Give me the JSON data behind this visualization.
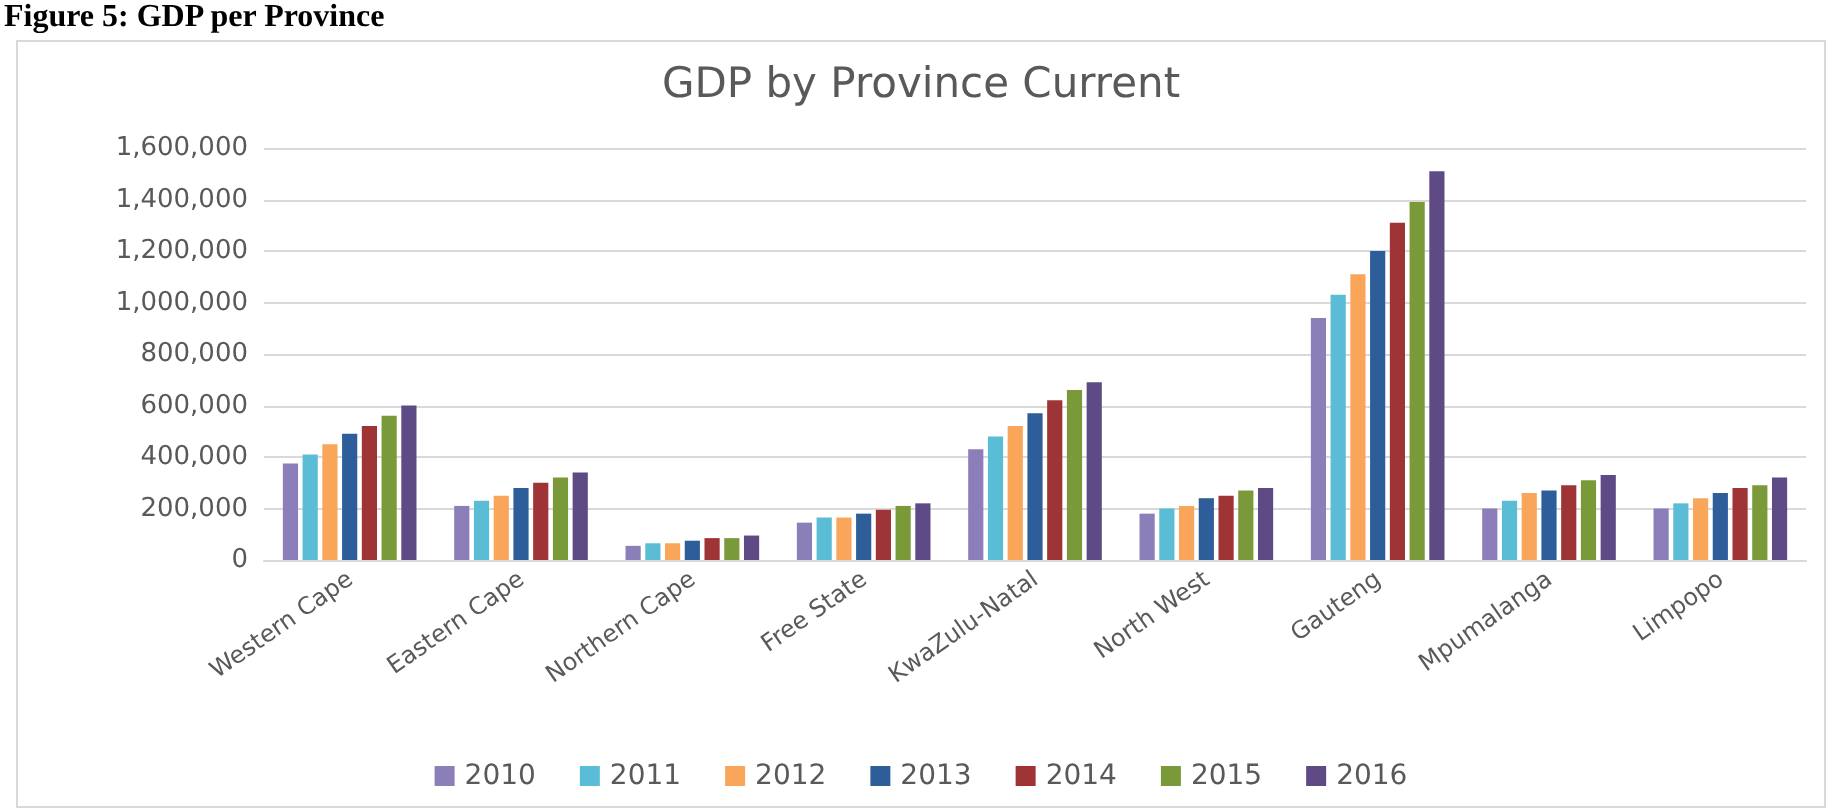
{
  "chart_data": {
    "type": "bar",
    "title": "GDP by Province Current",
    "annotations": [
      "Figure 5: GDP per Province"
    ],
    "categories": [
      "Western Cape",
      "Eastern Cape",
      "Northern Cape",
      "Free State",
      "KwaZulu-Natal",
      "North West",
      "Gauteng",
      "Mpumalanga",
      "Limpopo"
    ],
    "series": [
      {
        "name": "2010",
        "color": "#8c7eb8",
        "values": [
          375000,
          210000,
          55000,
          145000,
          430000,
          180000,
          940000,
          200000,
          200000
        ]
      },
      {
        "name": "2011",
        "color": "#5bbcd6",
        "values": [
          410000,
          230000,
          65000,
          165000,
          480000,
          200000,
          1030000,
          230000,
          220000
        ]
      },
      {
        "name": "2012",
        "color": "#f9a65a",
        "values": [
          450000,
          250000,
          65000,
          165000,
          520000,
          210000,
          1110000,
          260000,
          240000
        ]
      },
      {
        "name": "2013",
        "color": "#2e5e9a",
        "values": [
          490000,
          280000,
          75000,
          180000,
          570000,
          240000,
          1200000,
          270000,
          260000
        ]
      },
      {
        "name": "2014",
        "color": "#9e3436",
        "values": [
          520000,
          300000,
          85000,
          195000,
          620000,
          250000,
          1310000,
          290000,
          280000
        ]
      },
      {
        "name": "2015",
        "color": "#7a9a3a",
        "values": [
          560000,
          320000,
          85000,
          210000,
          660000,
          270000,
          1390000,
          310000,
          290000
        ]
      },
      {
        "name": "2016",
        "color": "#5e4a84",
        "values": [
          600000,
          340000,
          95000,
          220000,
          690000,
          280000,
          1510000,
          330000,
          320000
        ]
      }
    ],
    "ylim": [
      0,
      1600000
    ],
    "yticks": [
      0,
      {
        "value": 200000,
        "label": "200,000"
      },
      {
        "value": 400000,
        "label": "400,000"
      },
      {
        "value": 600000,
        "label": "600,000"
      },
      {
        "value": 800000,
        "label": "800,000"
      },
      {
        "value": 1000000,
        "label": "1,000,000"
      },
      {
        "value": 1200000,
        "label": "1,200,000"
      },
      {
        "value": 1400000,
        "label": "1,400,000"
      },
      {
        "value": 1600000,
        "label": "1,600,000"
      }
    ],
    "grid": "y",
    "legend": "bottom"
  }
}
